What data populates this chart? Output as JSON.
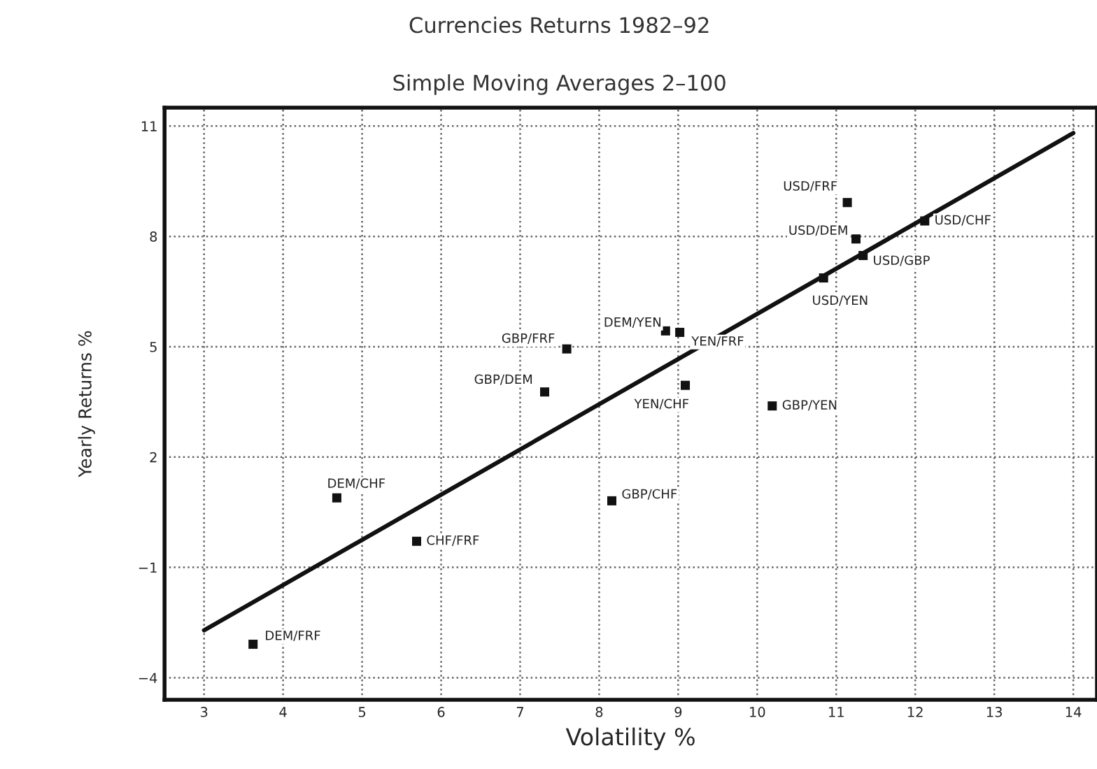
{
  "chart_data": {
    "type": "scatter",
    "title": "Currencies Returns 1982–92",
    "subtitle": "Simple Moving Averages 2–100",
    "xlabel": "Volatility %",
    "ylabel": "Yearly Returns %",
    "x": [
      3.62,
      4.68,
      5.69,
      8.16,
      7.31,
      7.59,
      8.84,
      9.02,
      9.09,
      10.19,
      10.84,
      11.14,
      11.25,
      11.34,
      12.12
    ],
    "series": [
      {
        "color": "#111111",
        "marker": "square",
        "values": [
          -3.09,
          0.89,
          -0.29,
          0.81,
          3.77,
          4.94,
          5.43,
          5.39,
          3.95,
          3.39,
          6.87,
          8.92,
          7.93,
          7.48,
          8.42
        ]
      },
      {
        "type": "line",
        "color": "#111111",
        "x": [
          3,
          14
        ],
        "values": [
          -2.71,
          10.81
        ]
      }
    ],
    "annotations": [
      {
        "text": "DEM/FRF",
        "x": 3.62,
        "y": -3.09
      },
      {
        "text": "DEM/CHF",
        "x": 4.68,
        "y": 0.89
      },
      {
        "text": "CHF/FRF",
        "x": 5.69,
        "y": -0.29
      },
      {
        "text": "GBP/CHF",
        "x": 8.16,
        "y": 0.81
      },
      {
        "text": "GBP/DEM",
        "x": 7.31,
        "y": 3.77
      },
      {
        "text": "GBP/FRF",
        "x": 7.59,
        "y": 4.94
      },
      {
        "text": "DEM/YEN",
        "x": 8.84,
        "y": 5.43
      },
      {
        "text": "YEN/FRF",
        "x": 9.02,
        "y": 5.39
      },
      {
        "text": "YEN/CHF",
        "x": 9.09,
        "y": 3.95
      },
      {
        "text": "GBP/YEN",
        "x": 10.19,
        "y": 3.39
      },
      {
        "text": "USD/YEN",
        "x": 10.84,
        "y": 6.87
      },
      {
        "text": "USD/FRF",
        "x": 11.14,
        "y": 8.92
      },
      {
        "text": "USD/DEM",
        "x": 11.25,
        "y": 7.93
      },
      {
        "text": "USD/GBP",
        "x": 11.34,
        "y": 7.48
      },
      {
        "text": "USD/CHF",
        "x": 12.12,
        "y": 8.42
      }
    ],
    "xlim": [
      2.5,
      14.3
    ],
    "ylim": [
      -4.6,
      11.5
    ],
    "xticks": [
      3,
      4,
      5,
      6,
      7,
      8,
      9,
      10,
      11,
      12,
      13,
      14
    ],
    "yticks": [
      -4,
      -1,
      2,
      5,
      8,
      11
    ],
    "grid": true,
    "legend": false
  }
}
